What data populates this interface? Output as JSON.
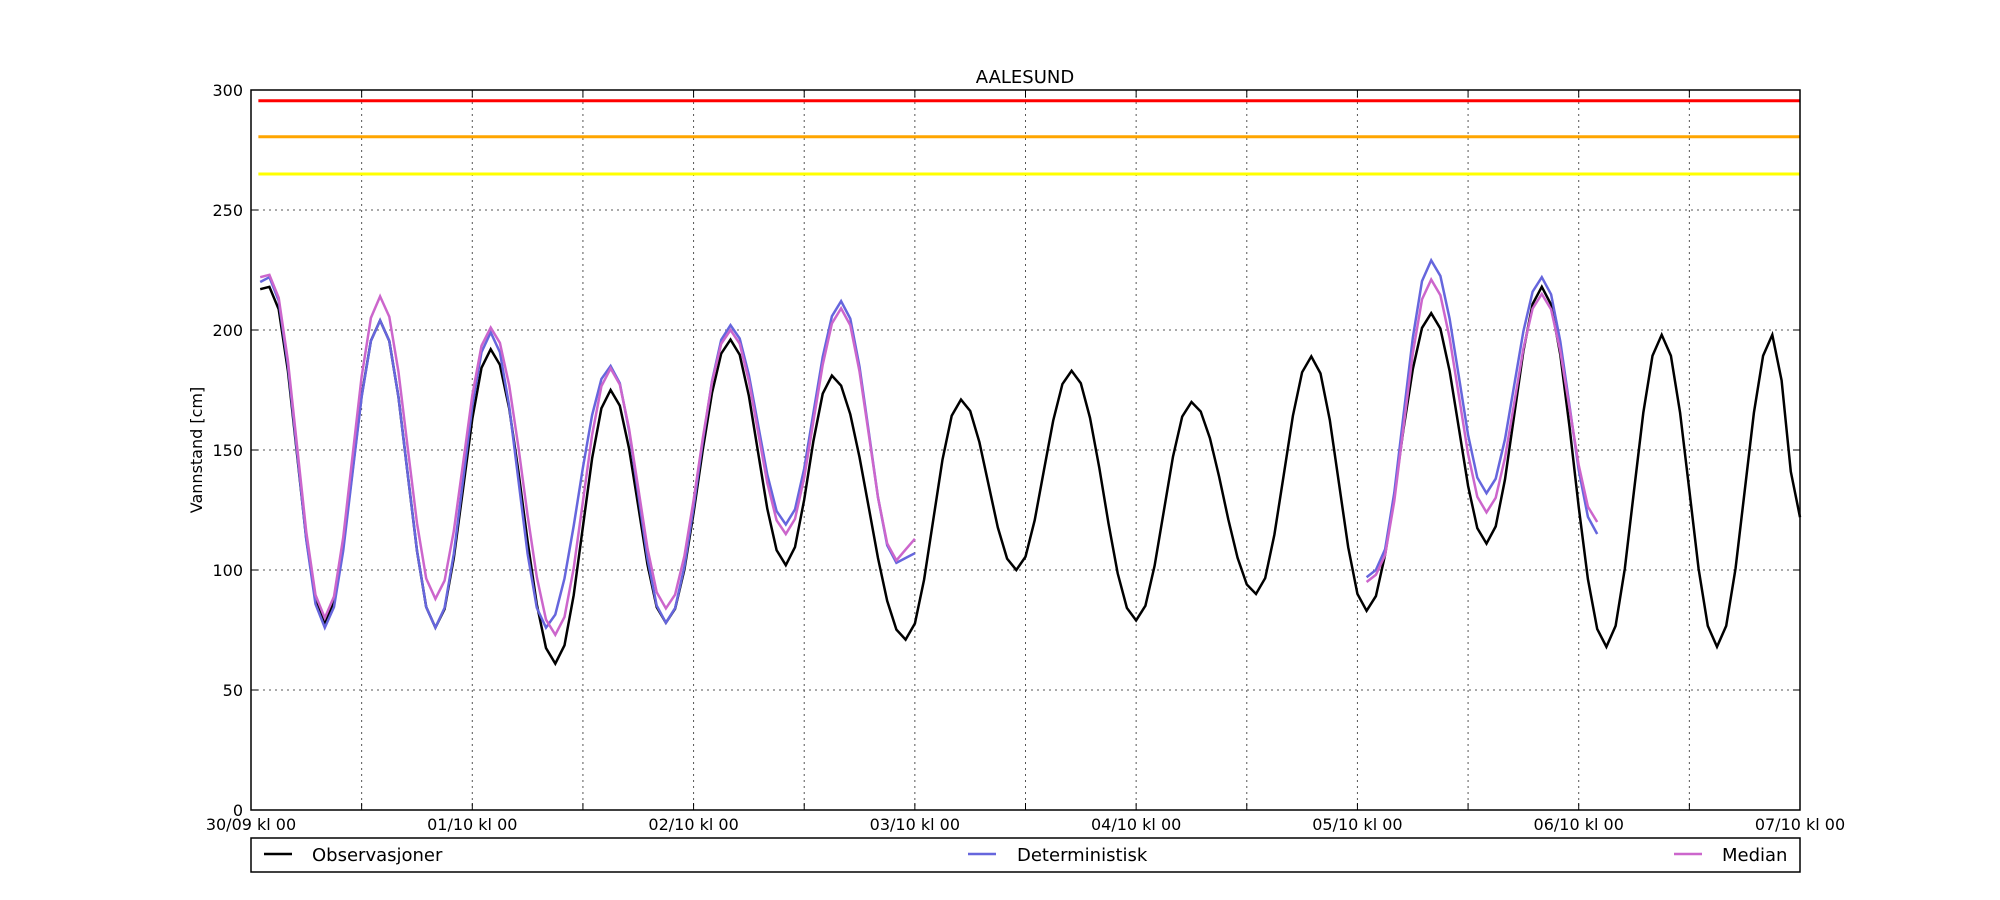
{
  "chart_data": {
    "type": "line",
    "title": "AALESUND",
    "xlabel": "",
    "ylabel": "Vannstand [cm]",
    "xlim_hours": [
      0,
      168
    ],
    "ylim": [
      0,
      300
    ],
    "yticks": [
      0,
      50,
      100,
      150,
      200,
      250,
      300
    ],
    "xtick_hours": [
      0,
      24,
      48,
      72,
      96,
      120,
      144,
      168
    ],
    "xtick_labels": [
      "30/09 kl 00",
      "01/10 kl 00",
      "02/10 kl 00",
      "03/10 kl 00",
      "04/10 kl 00",
      "05/10 kl 00",
      "06/10 kl 00",
      "07/10 kl 00"
    ],
    "minor_xtick_hours": [
      12,
      36,
      60,
      84,
      108,
      132,
      156
    ],
    "grid": true,
    "x_unit_note": "hours since 30/09 kl 00, hourly samples (series given as turning points [hour, cm])",
    "thresholds": [
      {
        "value": 295.5,
        "color": "#ff0000"
      },
      {
        "value": 280.5,
        "color": "#ffa500"
      },
      {
        "value": 265,
        "color": "#ffff00"
      }
    ],
    "series": [
      {
        "name": "Observasjoner",
        "color": "#000000",
        "segments": [
          [
            [
              1,
              217
            ],
            [
              2,
              218
            ],
            [
              8,
              78
            ],
            [
              14,
              204
            ],
            [
              20,
              76
            ],
            [
              26,
              192
            ],
            [
              33,
              61
            ],
            [
              39,
              175
            ],
            [
              45,
              78
            ],
            [
              52,
              196
            ],
            [
              58,
              102
            ],
            [
              63,
              181
            ],
            [
              71,
              71
            ],
            [
              77,
              171
            ],
            [
              83,
              100
            ],
            [
              89,
              183
            ],
            [
              96,
              79
            ],
            [
              102,
              170
            ],
            [
              109,
              90
            ],
            [
              115,
              189
            ],
            [
              121,
              83
            ],
            [
              128,
              207
            ],
            [
              134,
              111
            ],
            [
              140,
              218
            ],
            [
              147,
              68
            ],
            [
              153,
              198
            ],
            [
              159,
              68
            ],
            [
              165,
              198
            ],
            [
              168,
              122
            ]
          ]
        ]
      },
      {
        "name": "Deterministisk",
        "color": "#6666dd",
        "segments": [
          [
            [
              1,
              220
            ],
            [
              2,
              222
            ],
            [
              8,
              76
            ],
            [
              14,
              204
            ],
            [
              20,
              76
            ],
            [
              26,
              199
            ],
            [
              32,
              76
            ],
            [
              39,
              185
            ],
            [
              45,
              78
            ],
            [
              52,
              202
            ],
            [
              58,
              119
            ],
            [
              64,
              212
            ],
            [
              70,
              103
            ],
            [
              72,
              107
            ]
          ],
          [
            [
              121,
              97
            ],
            [
              122,
              100
            ],
            [
              128,
              229
            ],
            [
              134,
              132
            ],
            [
              140,
              222
            ],
            [
              146,
              115
            ]
          ]
        ]
      },
      {
        "name": "Median",
        "color": "#cc66cc",
        "segments": [
          [
            [
              1,
              222
            ],
            [
              2,
              223
            ],
            [
              8,
              80
            ],
            [
              14,
              214
            ],
            [
              20,
              88
            ],
            [
              26,
              201
            ],
            [
              33,
              73
            ],
            [
              39,
              184
            ],
            [
              45,
              84
            ],
            [
              52,
              200
            ],
            [
              58,
              115
            ],
            [
              64,
              209
            ],
            [
              70,
              104
            ],
            [
              72,
              113
            ]
          ],
          [
            [
              121,
              95
            ],
            [
              122,
              98
            ],
            [
              128,
              221
            ],
            [
              134,
              124
            ],
            [
              140,
              215
            ],
            [
              146,
              120
            ]
          ]
        ]
      }
    ],
    "legend": {
      "placement": "below",
      "entries": [
        "Observasjoner",
        "Deterministisk",
        "Median"
      ]
    }
  }
}
